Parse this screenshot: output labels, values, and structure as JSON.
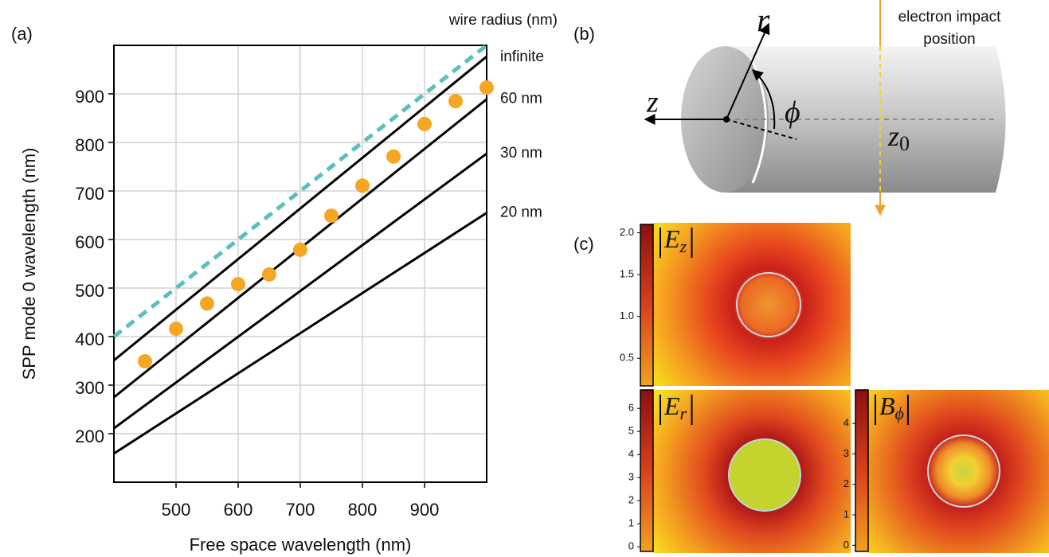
{
  "panel_labels": [
    "(a)",
    "(b)",
    "(c)"
  ],
  "diagram": {
    "r": "r",
    "phi": "ϕ",
    "z": "z",
    "z0_symbol": "z",
    "z0_subscript": "0",
    "impact": [
      "electron impact",
      "position"
    ]
  },
  "chart_data": [
    {
      "type": "line",
      "xlabel": "Free space wavelength (nm)",
      "ylabel": "SPP mode 0 wavelength (nm)",
      "annotation": "wire radius (nm)",
      "xlim": [
        400,
        1000
      ],
      "ylim": [
        100,
        1000
      ],
      "xticks": [
        500,
        600,
        700,
        800,
        900
      ],
      "yticks": [
        200,
        300,
        400,
        500,
        600,
        700,
        800,
        900
      ],
      "grid": true,
      "series": [
        {
          "color": "#5bbfbf",
          "style": "dashed",
          "x": [
            400,
            1000
          ],
          "values": [
            400,
            1000
          ]
        },
        {
          "name": "infinite",
          "color": "#000000",
          "style": "solid",
          "x": [
            400,
            1000
          ],
          "values": [
            351,
            977
          ]
        },
        {
          "name": "60 nm",
          "color": "#000000",
          "style": "solid",
          "x": [
            400,
            1000
          ],
          "values": [
            275,
            889
          ]
        },
        {
          "name": "30 nm",
          "color": "#000000",
          "style": "solid",
          "x": [
            400,
            1000
          ],
          "values": [
            211,
            777
          ]
        },
        {
          "name": "20 nm",
          "color": "#000000",
          "style": "solid",
          "x": [
            400,
            1000
          ],
          "values": [
            159,
            655
          ]
        },
        {
          "color": "#f5a623",
          "marker": "circle",
          "x": [
            450,
            500,
            550,
            600,
            650,
            700,
            750,
            800,
            850,
            900,
            950,
            1000
          ],
          "values": [
            349,
            416,
            468,
            508,
            528,
            579,
            649,
            711,
            771,
            838,
            885,
            913
          ]
        }
      ]
    },
    {
      "type": "heatmap",
      "title_symbol": "E",
      "title_subscript": "z",
      "ylim": [
        0.17,
        2.1
      ],
      "yticks": [
        {
          "value": 0.5,
          "label": "0.5"
        },
        {
          "value": 1,
          "label": "1.0"
        },
        1.5,
        {
          "value": 2,
          "label": "2.0"
        }
      ]
    },
    {
      "type": "heatmap",
      "title_symbol": "E",
      "title_subscript": "r",
      "ylim": [
        -0.2,
        6.8
      ],
      "yticks": [
        0,
        1,
        2,
        3,
        4,
        5,
        6
      ]
    },
    {
      "type": "heatmap",
      "title_symbol": "B",
      "title_subscript": "ϕ",
      "ylim": [
        -0.2,
        5.1
      ],
      "yticks": [
        0,
        1,
        2,
        3,
        4
      ]
    }
  ]
}
